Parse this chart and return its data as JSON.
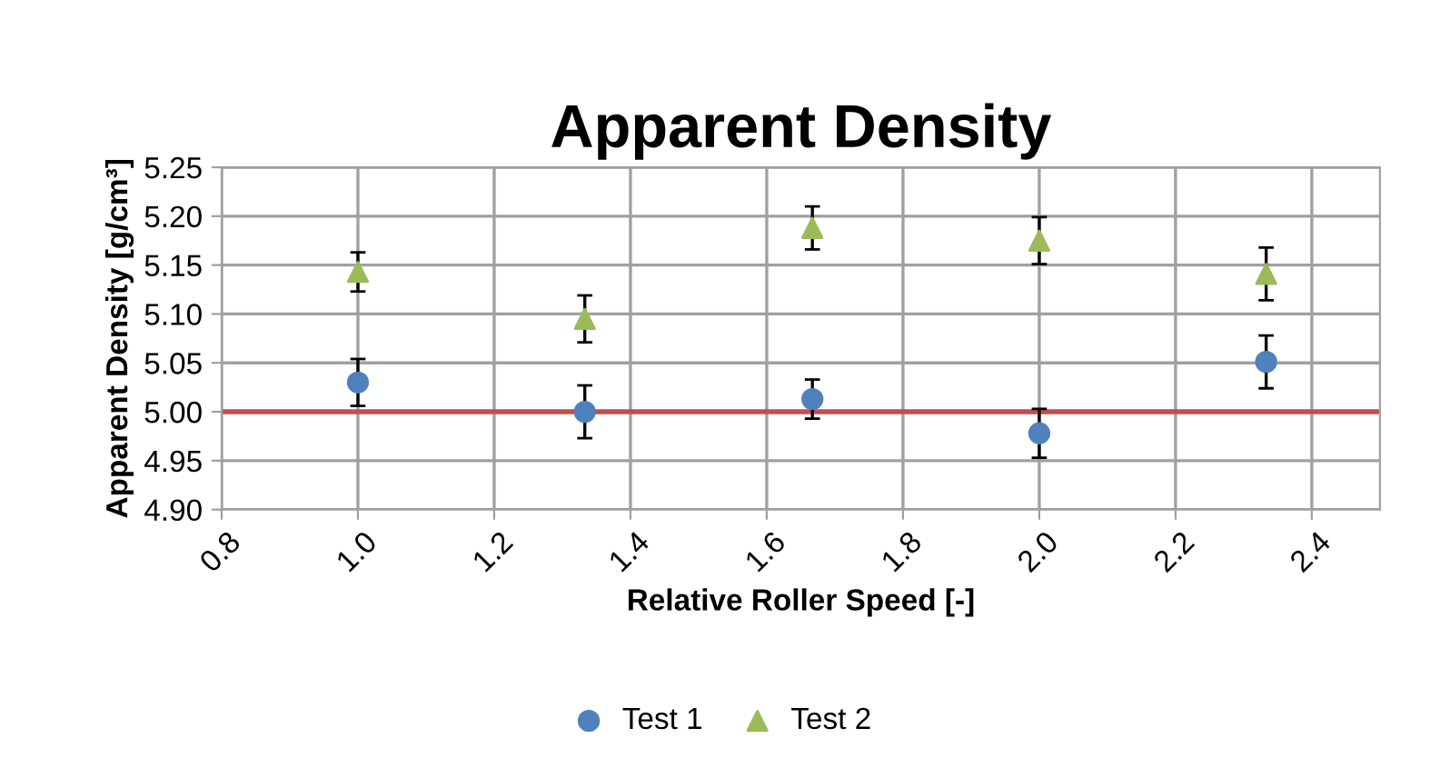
{
  "chart_data": {
    "type": "scatter",
    "title": "Apparent Density",
    "xlabel": "Relative Roller Speed [-]",
    "ylabel": "Apparent Density [g/cm³]",
    "xlim": [
      0.8,
      2.5
    ],
    "xticks": [
      {
        "value": 0.8,
        "label": "0.8"
      },
      {
        "value": 1.0,
        "label": "1.0"
      },
      {
        "value": 1.2,
        "label": "1.2"
      },
      {
        "value": 1.4,
        "label": "1.4"
      },
      {
        "value": 1.6,
        "label": "1.6"
      },
      {
        "value": 1.8,
        "label": "1.8"
      },
      {
        "value": 2.0,
        "label": "2.0"
      },
      {
        "value": 2.2,
        "label": "2.2"
      },
      {
        "value": 2.4,
        "label": "2.4"
      }
    ],
    "ylim": [
      4.9,
      5.25
    ],
    "yticks": [
      {
        "value": 4.9,
        "label": "4.90"
      },
      {
        "value": 4.95,
        "label": "4.95"
      },
      {
        "value": 5.0,
        "label": "5.00"
      },
      {
        "value": 5.05,
        "label": "5.05"
      },
      {
        "value": 5.1,
        "label": "5.10"
      },
      {
        "value": 5.15,
        "label": "5.15"
      },
      {
        "value": 5.2,
        "label": "5.20"
      },
      {
        "value": 5.25,
        "label": "5.25"
      }
    ],
    "grid": true,
    "legend": "bottom",
    "series": [
      {
        "name": "Test 1",
        "color": "#4f81bd",
        "marker": "circle",
        "x": [
          1.0,
          1.333,
          1.667,
          2.0,
          2.333
        ],
        "values": [
          5.03,
          5.0,
          5.013,
          4.978,
          5.051
        ],
        "errors": [
          0.024,
          0.027,
          0.02,
          0.025,
          0.027
        ]
      },
      {
        "name": "Test 2",
        "color": "#9bbb59",
        "marker": "triangle",
        "x": [
          1.0,
          1.333,
          1.667,
          2.0,
          2.333
        ],
        "values": [
          5.143,
          5.095,
          5.188,
          5.175,
          5.141
        ],
        "errors": [
          0.02,
          0.024,
          0.022,
          0.024,
          0.027
        ]
      }
    ],
    "ref_lines": [
      {
        "axis": "y",
        "value": 5.0,
        "color": "#c0504d"
      }
    ]
  }
}
